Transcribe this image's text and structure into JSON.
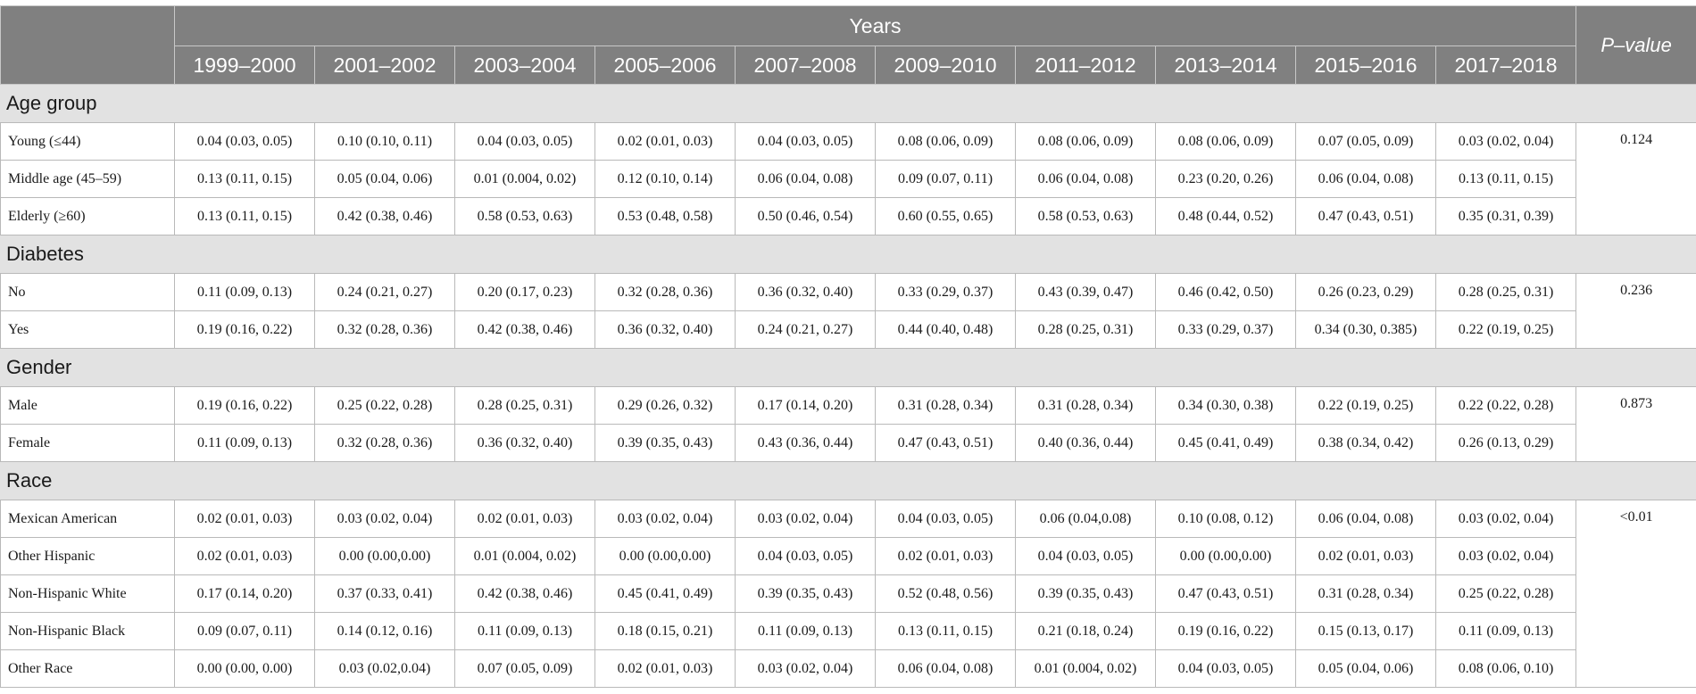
{
  "table": {
    "years_label": "Years",
    "pvalue_label": "P–value",
    "columns": [
      "1999–2000",
      "2001–2002",
      "2003–2004",
      "2005–2006",
      "2007–2008",
      "2009–2010",
      "2011–2012",
      "2013–2014",
      "2015–2016",
      "2017–2018"
    ],
    "groups": [
      {
        "title": "Age group",
        "pvalue": "0.124",
        "rows": [
          {
            "label": "Young (≤44)",
            "values": [
              "0.04 (0.03, 0.05)",
              "0.10 (0.10, 0.11)",
              "0.04 (0.03, 0.05)",
              "0.02 (0.01, 0.03)",
              "0.04 (0.03, 0.05)",
              "0.08 (0.06, 0.09)",
              "0.08 (0.06, 0.09)",
              "0.08 (0.06, 0.09)",
              "0.07 (0.05, 0.09)",
              "0.03 (0.02, 0.04)"
            ]
          },
          {
            "label": "Middle age (45–59)",
            "values": [
              "0.13 (0.11, 0.15)",
              "0.05 (0.04, 0.06)",
              "0.01 (0.004, 0.02)",
              "0.12 (0.10, 0.14)",
              "0.06 (0.04, 0.08)",
              "0.09 (0.07, 0.11)",
              "0.06 (0.04, 0.08)",
              "0.23 (0.20, 0.26)",
              "0.06 (0.04, 0.08)",
              "0.13 (0.11, 0.15)"
            ]
          },
          {
            "label": "Elderly (≥60)",
            "values": [
              "0.13 (0.11, 0.15)",
              "0.42 (0.38, 0.46)",
              "0.58 (0.53, 0.63)",
              "0.53 (0.48, 0.58)",
              "0.50 (0.46, 0.54)",
              "0.60 (0.55, 0.65)",
              "0.58 (0.53, 0.63)",
              "0.48 (0.44, 0.52)",
              "0.47 (0.43, 0.51)",
              "0.35 (0.31, 0.39)"
            ]
          }
        ]
      },
      {
        "title": "Diabetes",
        "pvalue": "0.236",
        "rows": [
          {
            "label": "No",
            "values": [
              "0.11 (0.09, 0.13)",
              "0.24 (0.21, 0.27)",
              "0.20 (0.17, 0.23)",
              "0.32 (0.28, 0.36)",
              "0.36 (0.32, 0.40)",
              "0.33 (0.29, 0.37)",
              "0.43 (0.39, 0.47)",
              "0.46 (0.42, 0.50)",
              "0.26 (0.23, 0.29)",
              "0.28 (0.25, 0.31)"
            ]
          },
          {
            "label": "Yes",
            "values": [
              "0.19 (0.16, 0.22)",
              "0.32 (0.28, 0.36)",
              "0.42 (0.38, 0.46)",
              "0.36 (0.32, 0.40)",
              "0.24 (0.21, 0.27)",
              "0.44 (0.40, 0.48)",
              "0.28 (0.25, 0.31)",
              "0.33 (0.29, 0.37)",
              "0.34 (0.30, 0.385)",
              "0.22 (0.19, 0.25)"
            ]
          }
        ]
      },
      {
        "title": "Gender",
        "pvalue": "0.873",
        "rows": [
          {
            "label": "Male",
            "values": [
              "0.19 (0.16, 0.22)",
              "0.25 (0.22, 0.28)",
              "0.28 (0.25, 0.31)",
              "0.29 (0.26, 0.32)",
              "0.17 (0.14, 0.20)",
              "0.31 (0.28, 0.34)",
              "0.31 (0.28, 0.34)",
              "0.34 (0.30, 0.38)",
              "0.22 (0.19, 0.25)",
              "0.22 (0.22, 0.28)"
            ]
          },
          {
            "label": "Female",
            "values": [
              "0.11 (0.09, 0.13)",
              "0.32 (0.28, 0.36)",
              "0.36 (0.32, 0.40)",
              "0.39 (0.35, 0.43)",
              "0.43 (0.36, 0.44)",
              "0.47 (0.43, 0.51)",
              "0.40 (0.36, 0.44)",
              "0.45 (0.41, 0.49)",
              "0.38 (0.34, 0.42)",
              "0.26 (0.13, 0.29)"
            ]
          }
        ]
      },
      {
        "title": "Race",
        "pvalue": "<0.01",
        "rows": [
          {
            "label": "Mexican American",
            "values": [
              "0.02 (0.01, 0.03)",
              "0.03 (0.02, 0.04)",
              "0.02 (0.01, 0.03)",
              "0.03 (0.02, 0.04)",
              "0.03 (0.02, 0.04)",
              "0.04 (0.03, 0.05)",
              "0.06 (0.04,0.08)",
              "0.10 (0.08, 0.12)",
              "0.06 (0.04, 0.08)",
              "0.03 (0.02, 0.04)"
            ]
          },
          {
            "label": "Other Hispanic",
            "values": [
              "0.02 (0.01, 0.03)",
              "0.00 (0.00,0.00)",
              "0.01 (0.004, 0.02)",
              "0.00 (0.00,0.00)",
              "0.04 (0.03, 0.05)",
              "0.02 (0.01, 0.03)",
              "0.04 (0.03, 0.05)",
              "0.00 (0.00,0.00)",
              "0.02 (0.01, 0.03)",
              "0.03 (0.02, 0.04)"
            ]
          },
          {
            "label": "Non-Hispanic White",
            "values": [
              "0.17 (0.14, 0.20)",
              "0.37 (0.33, 0.41)",
              "0.42 (0.38, 0.46)",
              "0.45 (0.41, 0.49)",
              "0.39 (0.35, 0.43)",
              "0.52 (0.48, 0.56)",
              "0.39 (0.35, 0.43)",
              "0.47 (0.43, 0.51)",
              "0.31 (0.28, 0.34)",
              "0.25 (0.22, 0.28)"
            ]
          },
          {
            "label": "Non-Hispanic Black",
            "values": [
              "0.09 (0.07, 0.11)",
              "0.14 (0.12, 0.16)",
              "0.11 (0.09, 0.13)",
              "0.18 (0.15, 0.21)",
              "0.11 (0.09, 0.13)",
              "0.13 (0.11, 0.15)",
              "0.21 (0.18, 0.24)",
              "0.19 (0.16, 0.22)",
              "0.15 (0.13, 0.17)",
              "0.11 (0.09, 0.13)"
            ]
          },
          {
            "label": "Other Race",
            "values": [
              "0.00 (0.00, 0.00)",
              "0.03 (0.02,0.04)",
              "0.07 (0.05, 0.09)",
              "0.02 (0.01, 0.03)",
              "0.03 (0.02, 0.04)",
              "0.06 (0.04, 0.08)",
              "0.01 (0.004, 0.02)",
              "0.04 (0.03, 0.05)",
              "0.05 (0.04, 0.06)",
              "0.08 (0.06, 0.10)"
            ]
          }
        ]
      }
    ]
  }
}
